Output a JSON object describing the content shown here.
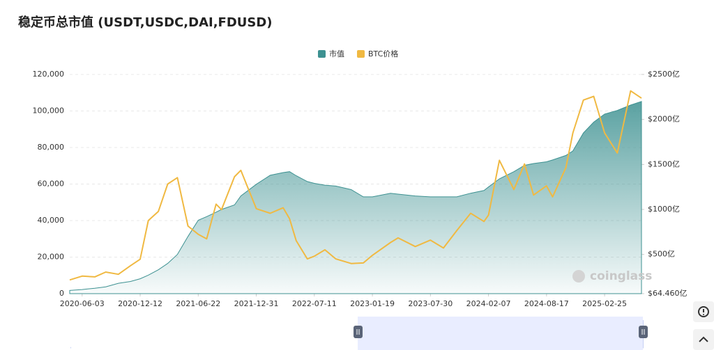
{
  "chart_data": {
    "type": "area-line",
    "title": "稳定币总市值 (USDT,USDC,DAI,FDUSD)",
    "watermark": "coinglass",
    "legend": "top",
    "grid": true,
    "x": [
      "2020-04-23",
      "2020-06-03",
      "2020-07-15",
      "2020-08-20",
      "2020-10-01",
      "2020-11-10",
      "2020-12-12",
      "2021-01-08",
      "2021-02-10",
      "2021-03-13",
      "2021-04-14",
      "2021-05-19",
      "2021-06-22",
      "2021-07-20",
      "2021-08-20",
      "2021-09-07",
      "2021-10-20",
      "2021-11-10",
      "2021-12-31",
      "2022-02-15",
      "2022-03-30",
      "2022-04-20",
      "2022-05-12",
      "2022-06-18",
      "2022-07-11",
      "2022-08-15",
      "2022-09-20",
      "2022-11-10",
      "2022-12-20",
      "2023-01-19",
      "2023-03-20",
      "2023-04-14",
      "2023-06-10",
      "2023-07-30",
      "2023-09-11",
      "2023-10-25",
      "2023-12-10",
      "2024-01-23",
      "2024-02-07",
      "2024-03-14",
      "2024-05-01",
      "2024-06-05",
      "2024-07-05",
      "2024-08-17",
      "2024-09-06",
      "2024-10-20",
      "2024-11-12",
      "2024-12-17",
      "2025-01-20",
      "2025-02-25",
      "2025-04-08",
      "2025-05-22",
      "2025-06-27"
    ],
    "xlim": [
      "2020-04-23",
      "2025-06-27"
    ],
    "xticks": [
      "2020-06-03",
      "2020-12-12",
      "2021-06-22",
      "2021-12-31",
      "2022-07-11",
      "2023-01-19",
      "2023-07-30",
      "2024-02-07",
      "2024-08-17",
      "2025-02-25"
    ],
    "ylim": [
      0,
      120000
    ],
    "yticks": [
      0,
      {
        "value": 20000,
        "label": "20,000"
      },
      {
        "value": 40000,
        "label": "40,000"
      },
      {
        "value": 60000,
        "label": "60,000"
      },
      {
        "value": 80000,
        "label": "80,000"
      },
      {
        "value": 100000,
        "label": "100,000"
      },
      {
        "value": 120000,
        "label": "120,000"
      }
    ],
    "y2lim": [
      64.46,
      2500
    ],
    "y2ticks": [
      {
        "value": 64.46,
        "label": "$64.460亿"
      },
      {
        "value": 500,
        "label": "$500亿"
      },
      {
        "value": 1000,
        "label": "$1000亿"
      },
      {
        "value": 1500,
        "label": "$1500亿"
      },
      {
        "value": 2000,
        "label": "$2000亿"
      },
      {
        "value": 2500,
        "label": "$2500亿"
      }
    ],
    "series": [
      {
        "name": "市值",
        "color": "#3d9191",
        "axis": "y2",
        "values": [
          100,
          110,
          125,
          140,
          180,
          200,
          230,
          270,
          330,
          400,
          500,
          700,
          880,
          920,
          970,
          1000,
          1050,
          1150,
          1280,
          1380,
          1410,
          1420,
          1375,
          1310,
          1290,
          1270,
          1260,
          1220,
          1140,
          1140,
          1180,
          1170,
          1150,
          1140,
          1140,
          1140,
          1180,
          1210,
          1250,
          1340,
          1420,
          1490,
          1510,
          1530,
          1550,
          1600,
          1650,
          1850,
          1970,
          2060,
          2100,
          2160,
          2200
        ]
      },
      {
        "name": "BTC价格",
        "color": "#f0b942",
        "axis": "y",
        "values": [
          7500,
          9600,
          9200,
          11800,
          10600,
          15300,
          18800,
          40000,
          45000,
          60000,
          63500,
          37000,
          32500,
          30000,
          49000,
          46000,
          64000,
          67500,
          46500,
          44000,
          47000,
          41000,
          29000,
          19000,
          20500,
          24000,
          19000,
          16500,
          16800,
          21000,
          28000,
          30500,
          25800,
          29300,
          25000,
          34500,
          44000,
          39500,
          43000,
          73000,
          57000,
          71000,
          54000,
          59000,
          53000,
          69000,
          88000,
          106000,
          108000,
          88000,
          77000,
          111000,
          107000
        ]
      }
    ]
  }
}
